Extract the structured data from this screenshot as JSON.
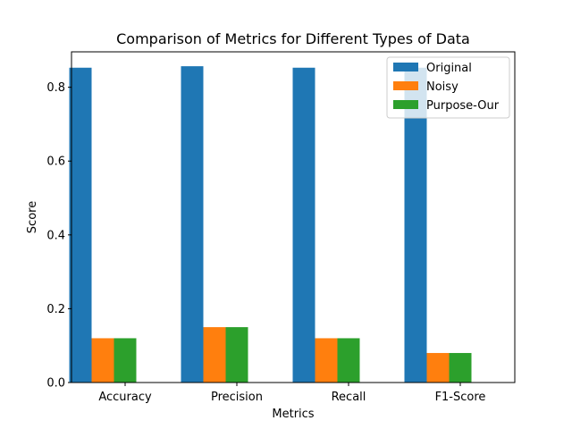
{
  "chart_data": {
    "type": "bar",
    "title": "Comparison of Metrics for Different Types of Data",
    "xlabel": "Metrics",
    "ylabel": "Score",
    "categories": [
      "Accuracy",
      "Precision",
      "Recall",
      "F1-Score"
    ],
    "series": [
      {
        "name": "Original",
        "color": "#1f77b4",
        "values": [
          0.853,
          0.857,
          0.853,
          0.853
        ]
      },
      {
        "name": "Noisy",
        "color": "#ff7f0e",
        "values": [
          0.12,
          0.15,
          0.12,
          0.08
        ]
      },
      {
        "name": "Purpose-Our",
        "color": "#2ca02c",
        "values": [
          0.12,
          0.15,
          0.12,
          0.08
        ]
      }
    ],
    "ylim": [
      0,
      0.896
    ],
    "yticks": [
      0.0,
      0.2,
      0.4,
      0.6,
      0.8
    ],
    "ytick_labels": [
      "0.0",
      "0.2",
      "0.4",
      "0.6",
      "0.8"
    ],
    "legend": "top-right",
    "grid": false
  }
}
